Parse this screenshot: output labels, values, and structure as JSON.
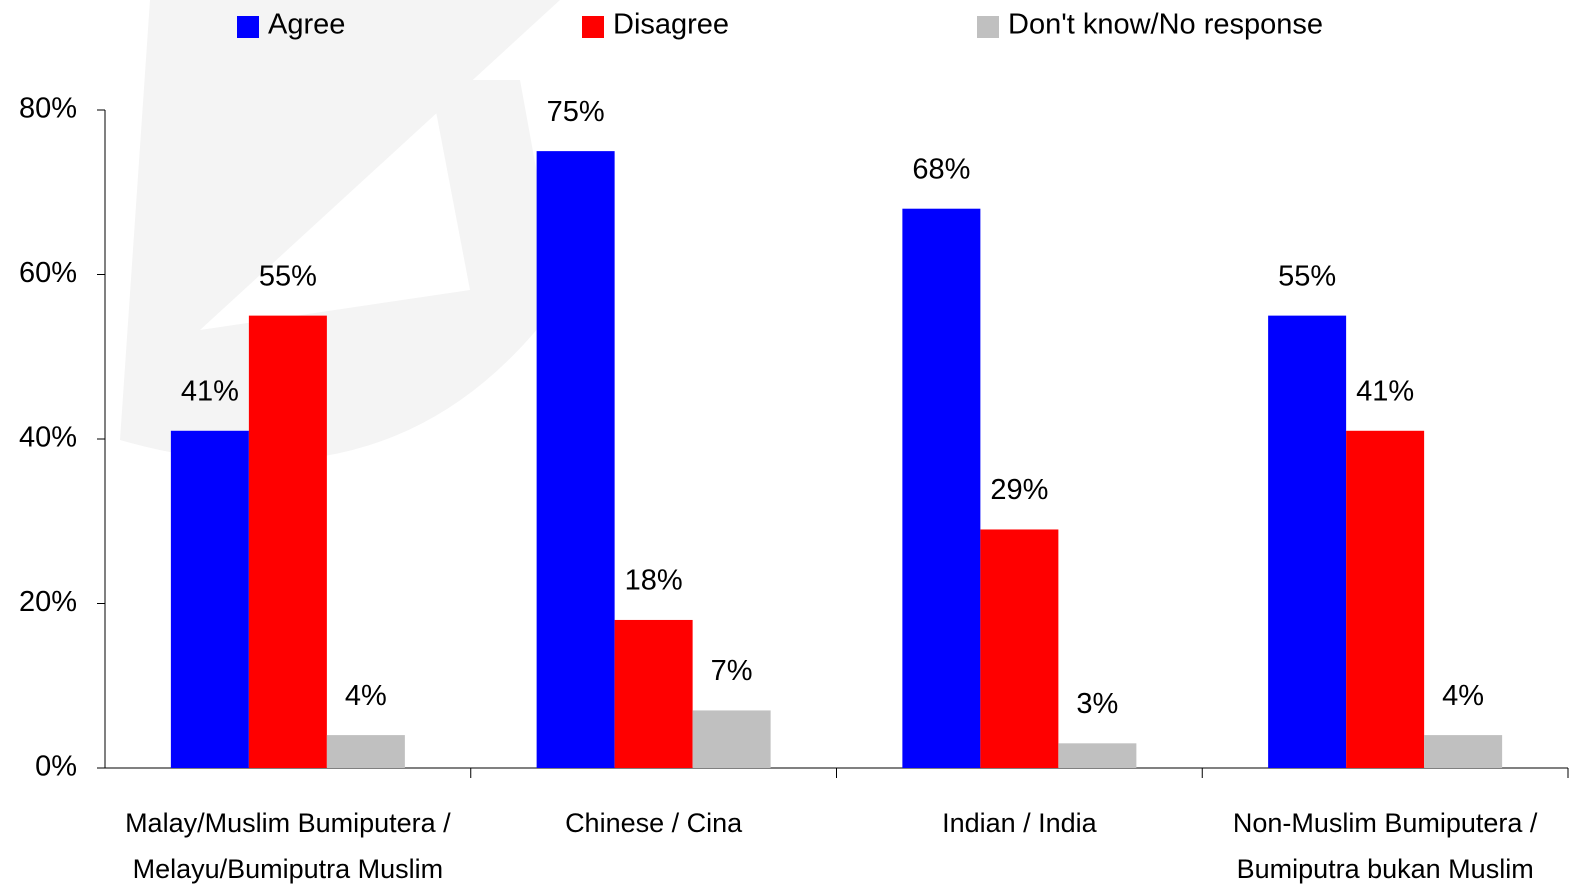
{
  "chart_data": {
    "type": "bar",
    "categories": [
      "Malay/Muslim Bumiputera / Melayu/Bumiputra Muslim",
      "Chinese / Cina",
      "Indian / India",
      "Non-Muslim Bumiputera / Bumiputra bukan Muslim"
    ],
    "series": [
      {
        "name": "Agree",
        "color": "#0000ff",
        "values": [
          41,
          75,
          68,
          55
        ],
        "value_labels": [
          "41%",
          "75%",
          "68%",
          "55%"
        ]
      },
      {
        "name": "Disagree",
        "color": "#ff0000",
        "values": [
          55,
          18,
          29,
          41
        ],
        "value_labels": [
          "55%",
          "18%",
          "29%",
          "41%"
        ]
      },
      {
        "name": "Don't know/No response",
        "color": "#c0c0c0",
        "values": [
          4,
          7,
          3,
          4
        ],
        "value_labels": [
          "4%",
          "7%",
          "3%",
          "4%"
        ]
      }
    ],
    "ylim": [
      0,
      80
    ],
    "yticks": [
      {
        "value": 0,
        "label": "0%"
      },
      {
        "value": 20,
        "label": "20%"
      },
      {
        "value": 40,
        "label": "40%"
      },
      {
        "value": 60,
        "label": "60%"
      },
      {
        "value": 80,
        "label": "80%"
      }
    ],
    "legend": "top"
  }
}
